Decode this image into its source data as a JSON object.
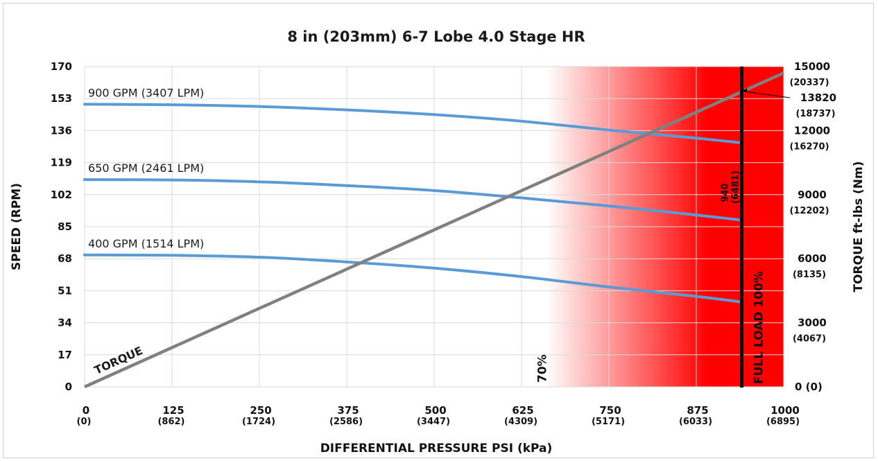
{
  "chart_data": {
    "type": "line",
    "title": "8 in (203mm) 6-7 Lobe 4.0 Stage HR",
    "xlabel": "DIFFERENTIAL PRESSURE PSI (kPa)",
    "ylabel": "SPEED (RPM)",
    "y2label": "TORQUE ft-lbs (Nm)",
    "xlim": [
      0,
      1000
    ],
    "ylim": [
      0,
      170
    ],
    "y2lim": [
      0,
      15000
    ],
    "grid": true,
    "x_ticks": [
      {
        "value": 0,
        "label": "0",
        "sub": "(0)"
      },
      {
        "value": 125,
        "label": "125",
        "sub": "(862)"
      },
      {
        "value": 250,
        "label": "250",
        "sub": "(1724)"
      },
      {
        "value": 375,
        "label": "375",
        "sub": "(2586)"
      },
      {
        "value": 500,
        "label": "500",
        "sub": "(3447)"
      },
      {
        "value": 625,
        "label": "625",
        "sub": "(4309)"
      },
      {
        "value": 750,
        "label": "750",
        "sub": "(5171)"
      },
      {
        "value": 875,
        "label": "875",
        "sub": "(6033)"
      },
      {
        "value": 1000,
        "label": "1000",
        "sub": "(6895)"
      }
    ],
    "y_ticks": [
      0,
      17,
      34,
      51,
      68,
      85,
      102,
      119,
      136,
      153,
      170
    ],
    "y2_ticks": [
      {
        "value": 0,
        "label": "0 (0)",
        "sub": ""
      },
      {
        "value": 3000,
        "label": "3000",
        "sub": "(4067)"
      },
      {
        "value": 6000,
        "label": "6000",
        "sub": "(8135)"
      },
      {
        "value": 9000,
        "label": "9000",
        "sub": "(12202)"
      },
      {
        "value": 12000,
        "label": "12000",
        "sub": "(16270)"
      },
      {
        "value": 15000,
        "label": "15000",
        "sub": "(20337)"
      }
    ],
    "series": [
      {
        "name": "900 GPM (3407 LPM)",
        "axis": "speed",
        "color": "#5b9bd5",
        "x": [
          0,
          125,
          250,
          375,
          500,
          625,
          750,
          875,
          940
        ],
        "y": [
          150,
          149.7,
          148.8,
          147,
          144.5,
          141,
          136.3,
          132,
          129.5
        ]
      },
      {
        "name": "650 GPM (2461 LPM)",
        "axis": "speed",
        "color": "#5b9bd5",
        "x": [
          0,
          125,
          250,
          375,
          500,
          625,
          750,
          875,
          940
        ],
        "y": [
          110,
          109.8,
          108.8,
          106.8,
          104.2,
          100.3,
          96,
          91.2,
          88.5
        ]
      },
      {
        "name": "400 GPM (1514 LPM)",
        "axis": "speed",
        "color": "#5b9bd5",
        "x": [
          0,
          125,
          250,
          375,
          500,
          625,
          750,
          875,
          940
        ],
        "y": [
          70,
          69.8,
          68.8,
          66.3,
          63,
          58.5,
          53,
          48,
          45
        ]
      },
      {
        "name": "TORQUE",
        "axis": "torque",
        "color": "#808080",
        "x": [
          0,
          1000
        ],
        "y": [
          0,
          14700
        ]
      }
    ],
    "annotations": {
      "zone_70_label": "70%",
      "full_load_label": "FULL LOAD 100%",
      "full_load_x": 940,
      "full_load_x_label": "940",
      "full_load_x_sub": "(6481)",
      "torque_at_full_load": 13820,
      "torque_at_full_load_label": "13820",
      "torque_at_full_load_sub": "(18737)",
      "zone_start_x": 660,
      "zone_color": "#ff0000"
    }
  }
}
